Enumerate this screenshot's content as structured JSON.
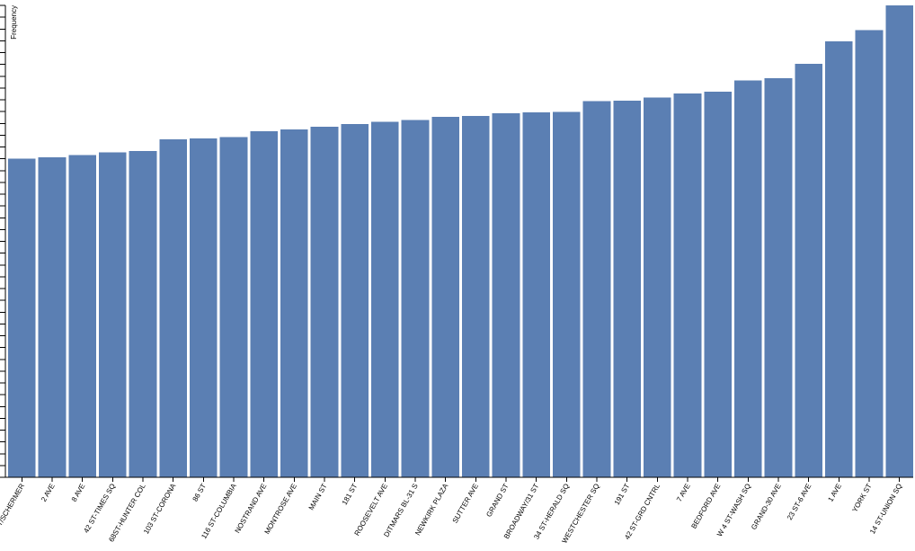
{
  "chart_data": {
    "type": "bar",
    "ylabel": "Frequency",
    "xlabel": "",
    "title": "",
    "grid": false,
    "bar_color": "#5b7fb3",
    "ylim": [
      0,
      100
    ],
    "categories": [
      "HOYT/SCHERMER",
      "2 AVE",
      "8 AVE",
      "42 ST-TIMES SQ",
      "68ST-HUNTER COL",
      "103 ST-CORONA",
      "86 ST",
      "116 ST-COLUMBIA",
      "NOSTRAND AVE",
      "MONTROSE AVE",
      "MAIN ST",
      "181 ST",
      "ROOSEVELT AVE",
      "DITMARS BL-31 S",
      "NEWKIRK PLAZA",
      "SUTTER AVE",
      "GRAND ST",
      "BROADWAY/31 ST",
      "34 ST-HERALD SQ",
      "WESTCHESTER SQ",
      "191 ST",
      "42 ST-GRD CNTRL",
      "7 AVE",
      "BEDFORD AVE",
      "W 4 ST-WASH SQ",
      "GRAND-30 AVE",
      "23 ST-6 AVE",
      "1 AVE",
      "YORK ST",
      "14 ST-UNION SQ"
    ],
    "values": [
      67.5,
      67.8,
      68.3,
      68.9,
      69.1,
      71.6,
      71.8,
      72.1,
      73.3,
      73.7,
      74.3,
      74.9,
      75.3,
      75.7,
      76.4,
      76.6,
      77.1,
      77.3,
      77.4,
      79.7,
      79.8,
      80.5,
      81.3,
      81.7,
      84.1,
      84.6,
      87.6,
      92.4,
      94.8,
      100
    ]
  }
}
